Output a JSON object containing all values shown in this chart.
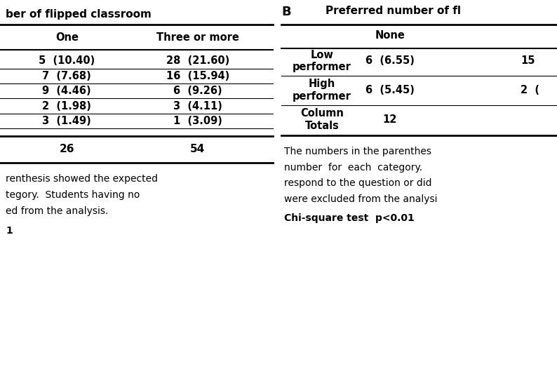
{
  "bg_color": "#ffffff",
  "fig_width": 7.94,
  "fig_height": 5.36,
  "panel_A": {
    "header": "ber of flipped classroom",
    "col_headers": [
      "One",
      "Three or more"
    ],
    "rows": [
      [
        "5  (10.40)",
        "28  (21.60)"
      ],
      [
        "7  (7.68)",
        "16  (15.94)"
      ],
      [
        "9  (4.46)",
        "6  (9.26)"
      ],
      [
        "2  (1.98)",
        "3  (4.11)"
      ],
      [
        "3  (1.49)",
        "1  (3.09)"
      ]
    ],
    "totals": [
      "26",
      "54"
    ],
    "footnote_lines": [
      "renthesis showed the expected",
      "tegory.  Students having no",
      "ed from the analysis.",
      "1"
    ]
  },
  "panel_B": {
    "label": "B",
    "header": "Preferred number of fl",
    "col_headers": [
      "None"
    ],
    "row_data": [
      [
        "Low\nperformer",
        "6  (6.55)",
        "15"
      ],
      [
        "High\nperformer",
        "6  (5.45)",
        "2  ("
      ],
      [
        "Column\nTotals",
        "12",
        ""
      ]
    ],
    "footnote_lines": [
      "The numbers in the parenthes",
      "number  for  each  category.",
      "respond to the question or did",
      "were excluded from the analysi",
      "Chi-square test  p<0.01"
    ]
  }
}
